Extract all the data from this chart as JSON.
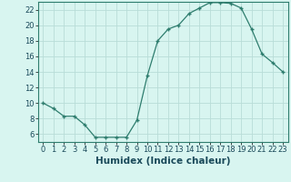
{
  "x": [
    0,
    1,
    2,
    3,
    4,
    5,
    6,
    7,
    8,
    9,
    10,
    11,
    12,
    13,
    14,
    15,
    16,
    17,
    18,
    19,
    20,
    21,
    22,
    23
  ],
  "y": [
    10,
    9.3,
    8.3,
    8.3,
    7.2,
    5.6,
    5.6,
    5.6,
    5.6,
    7.8,
    13.5,
    18,
    19.5,
    20,
    21.5,
    22.2,
    22.9,
    22.9,
    22.8,
    22.2,
    19.5,
    16.3,
    15.2,
    14.0
  ],
  "xlabel": "Humidex (Indice chaleur)",
  "xlim": [
    -0.5,
    23.5
  ],
  "ylim": [
    5.0,
    23.0
  ],
  "xticks": [
    0,
    1,
    2,
    3,
    4,
    5,
    6,
    7,
    8,
    9,
    10,
    11,
    12,
    13,
    14,
    15,
    16,
    17,
    18,
    19,
    20,
    21,
    22,
    23
  ],
  "yticks": [
    6,
    8,
    10,
    12,
    14,
    16,
    18,
    20,
    22
  ],
  "line_color": "#2E7D6E",
  "marker_color": "#2E7D6E",
  "bg_color": "#D8F5F0",
  "grid_color": "#B8DDD8",
  "xlabel_fontsize": 7.5,
  "tick_fontsize": 6.0
}
